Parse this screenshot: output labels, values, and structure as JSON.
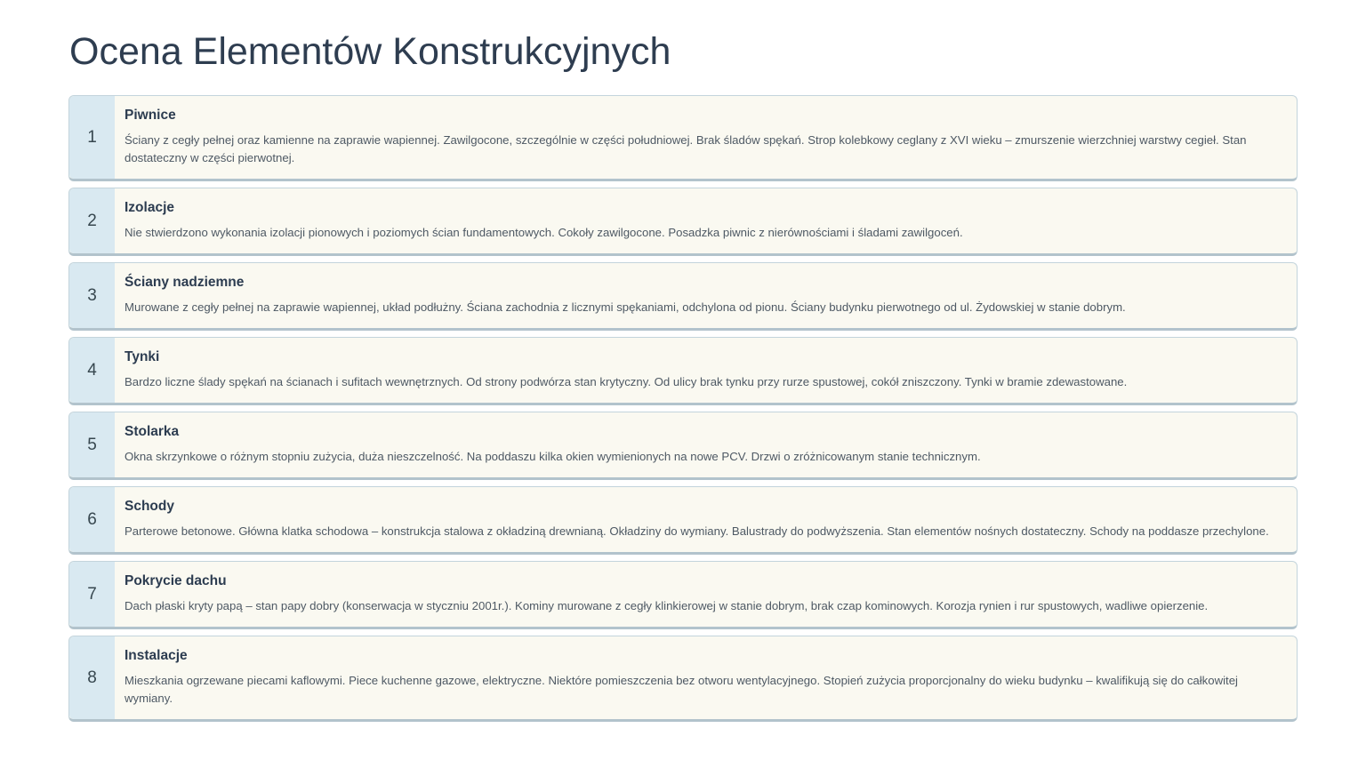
{
  "page": {
    "title": "Ocena Elementów Konstrukcyjnych"
  },
  "colors": {
    "title_text": "#2e3d50",
    "card_background": "#faf9f1",
    "badge_background": "#d9e9f1",
    "card_border": "#c3d4dc",
    "card_border_bottom": "#b2c3cc",
    "heading_text": "#2c3c50",
    "body_text": "#4e5964"
  },
  "items": [
    {
      "number": "1",
      "heading": "Piwnice",
      "description": "Ściany z cegły pełnej oraz kamienne na zaprawie wapiennej. Zawilgocone, szczególnie w części południowej. Brak śladów spękań. Strop kolebkowy ceglany z XVI wieku – zmurszenie wierzchniej warstwy cegieł. Stan dostateczny w części pierwotnej."
    },
    {
      "number": "2",
      "heading": "Izolacje",
      "description": "Nie stwierdzono wykonania izolacji pionowych i poziomych ścian fundamentowych. Cokoły zawilgocone. Posadzka piwnic z nierównościami i śladami zawilgoceń."
    },
    {
      "number": "3",
      "heading": "Ściany nadziemne",
      "description": "Murowane z cegły pełnej na zaprawie wapiennej, układ podłużny. Ściana zachodnia z licznymi spękaniami, odchylona od pionu. Ściany budynku pierwotnego od ul. Żydowskiej w stanie dobrym."
    },
    {
      "number": "4",
      "heading": "Tynki",
      "description": "Bardzo liczne ślady spękań na ścianach i sufitach wewnętrznych. Od strony podwórza stan krytyczny. Od ulicy brak tynku przy rurze spustowej, cokół zniszczony. Tynki w bramie zdewastowane."
    },
    {
      "number": "5",
      "heading": "Stolarka",
      "description": "Okna skrzynkowe o różnym stopniu zużycia, duża nieszczelność. Na poddaszu kilka okien wymienionych na nowe PCV. Drzwi o zróżnicowanym stanie technicznym."
    },
    {
      "number": "6",
      "heading": "Schody",
      "description": "Parterowe betonowe. Główna klatka schodowa – konstrukcja stalowa z okładziną drewnianą. Okładziny do wymiany. Balustrady do podwyższenia. Stan elementów nośnych dostateczny. Schody na poddasze przechylone."
    },
    {
      "number": "7",
      "heading": "Pokrycie dachu",
      "description": "Dach płaski kryty papą – stan papy dobry (konserwacja w styczniu 2001r.). Kominy murowane z cegły klinkierowej w stanie dobrym, brak czap kominowych. Korozja rynien i rur spustowych, wadliwe opierzenie."
    },
    {
      "number": "8",
      "heading": "Instalacje",
      "description": "Mieszkania ogrzewane piecami kaflowymi. Piece kuchenne gazowe, elektryczne. Niektóre pomieszczenia bez otworu wentylacyjnego. Stopień zużycia proporcjonalny do wieku budynku – kwalifikują się do całkowitej wymiany."
    }
  ]
}
